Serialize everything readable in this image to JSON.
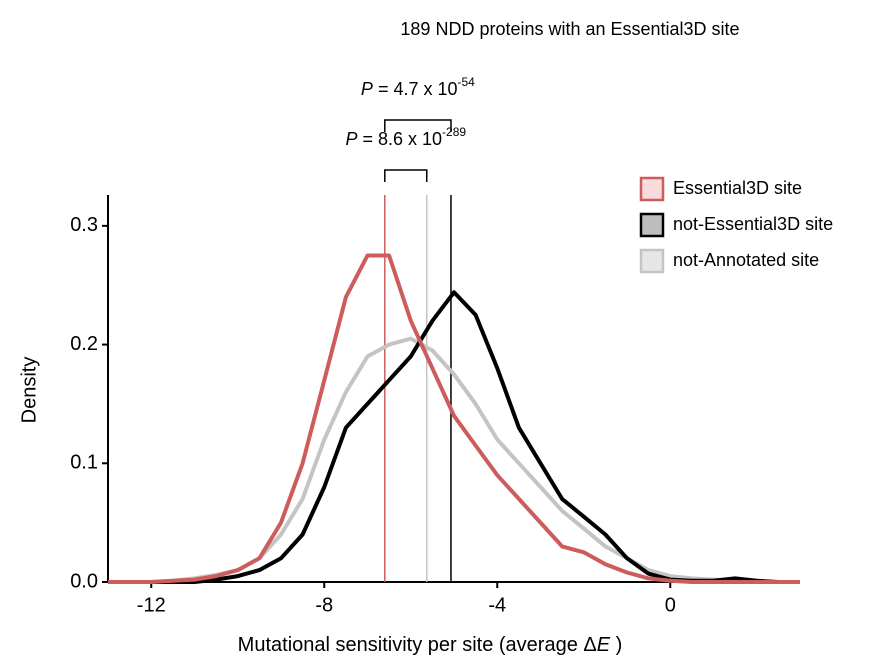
{
  "chart_data": {
    "type": "line",
    "title": "189 NDD proteins with an Essential3D site",
    "xlabel": {
      "text": "Mutational sensitivity per site (average Δ",
      "italic": "E",
      "end": " )"
    },
    "ylabel": "Density",
    "x": [
      -13,
      -12.5,
      -12,
      -11.5,
      -11,
      -10.5,
      -10,
      -9.5,
      -9,
      -8.5,
      -8,
      -7.5,
      -7,
      -6.5,
      -6,
      -5.5,
      -5,
      -4.5,
      -4,
      -3.5,
      -3,
      -2.5,
      -2,
      -1.5,
      -1,
      -0.5,
      0,
      0.5,
      1,
      1.5,
      2,
      2.5,
      3
    ],
    "series": [
      {
        "name": "Essential3D site",
        "color": "#cd5c5c",
        "fill": "#f7dcdc",
        "mean": -6.6,
        "values": [
          0,
          0,
          0,
          0.001,
          0.002,
          0.005,
          0.01,
          0.02,
          0.05,
          0.1,
          0.17,
          0.24,
          0.275,
          0.275,
          0.22,
          0.18,
          0.14,
          0.115,
          0.09,
          0.07,
          0.05,
          0.03,
          0.025,
          0.015,
          0.008,
          0.003,
          0.001,
          0,
          0,
          0,
          0,
          0,
          0
        ]
      },
      {
        "name": "not-Essential3D site",
        "color": "#000000",
        "fill": "#bdbdbd",
        "mean": -5.07,
        "values": [
          0,
          0,
          0,
          0,
          0,
          0.002,
          0.005,
          0.01,
          0.02,
          0.04,
          0.08,
          0.13,
          0.15,
          0.17,
          0.19,
          0.22,
          0.244,
          0.225,
          0.18,
          0.13,
          0.1,
          0.07,
          0.055,
          0.04,
          0.02,
          0.007,
          0.002,
          0.001,
          0.001,
          0.003,
          0.001,
          0,
          0
        ]
      },
      {
        "name": "not-Annotated site",
        "color": "#c4c4c4",
        "fill": "#e6e6e6",
        "mean": -5.63,
        "values": [
          0,
          0,
          0,
          0.001,
          0.003,
          0.006,
          0.01,
          0.02,
          0.04,
          0.07,
          0.12,
          0.16,
          0.19,
          0.2,
          0.205,
          0.195,
          0.175,
          0.15,
          0.12,
          0.1,
          0.08,
          0.06,
          0.045,
          0.03,
          0.02,
          0.01,
          0.005,
          0.003,
          0.002,
          0.001,
          0,
          0,
          0
        ]
      }
    ],
    "annotations": [
      {
        "p": "P",
        "text": " = 4.7 x 10",
        "exponent": "-54"
      },
      {
        "p": "P",
        "text": " = 8.6 x 10",
        "exponent": "-289"
      }
    ],
    "xlim": [
      -13,
      3
    ],
    "xticks": [
      -12,
      -8,
      -4,
      0
    ],
    "ylim": [
      0,
      0.326
    ],
    "yticks": [
      {
        "value": 0,
        "label": "0.0"
      },
      0.1,
      0.2,
      0.3
    ],
    "legend": "top-right"
  }
}
